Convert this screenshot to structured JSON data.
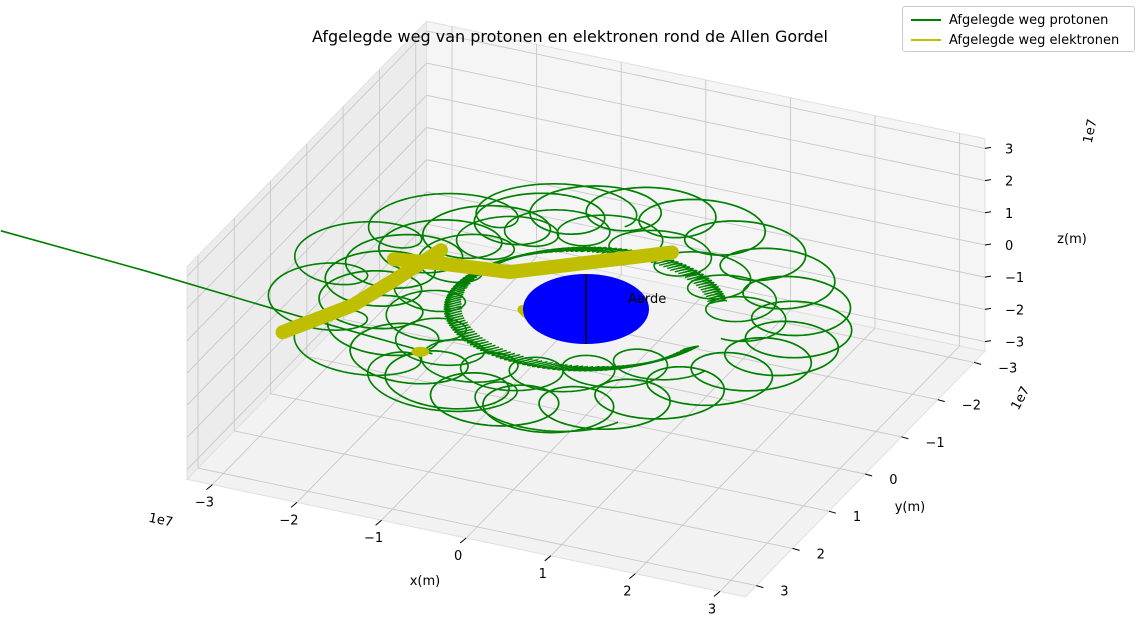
{
  "chart_data": {
    "type": "line3d",
    "title": "Afgelegde weg van protonen en elektronen rond de Allen Gordel",
    "xlabel": "x(m)",
    "ylabel": "y(m)",
    "zlabel": "z(m)",
    "x_exponent": "1e7",
    "y_exponent": "1e7",
    "z_exponent": "1e7",
    "x_ticks": [
      "−3",
      "−2",
      "−1",
      "0",
      "1",
      "2",
      "3"
    ],
    "y_ticks": [
      "−3",
      "−2",
      "−1",
      "0",
      "1",
      "2",
      "3"
    ],
    "z_ticks": [
      "−3",
      "−2",
      "−1",
      "0",
      "1",
      "2",
      "3"
    ],
    "xlim": [
      -3.3,
      3.3
    ],
    "ylim": [
      -3.3,
      3.3
    ],
    "zlim": [
      -3.3,
      3.3
    ],
    "grid": true,
    "legend_position": "top-right",
    "series": [
      {
        "name": "Afgelegde weg protonen",
        "color": "#008000"
      },
      {
        "name": "Afgelegde weg elektronen",
        "color": "#bfbf00"
      }
    ],
    "annotations": [
      {
        "text": "Aarde",
        "x": 0.3,
        "y": 0,
        "z": 0
      }
    ],
    "earth_color": "#0000ff"
  }
}
